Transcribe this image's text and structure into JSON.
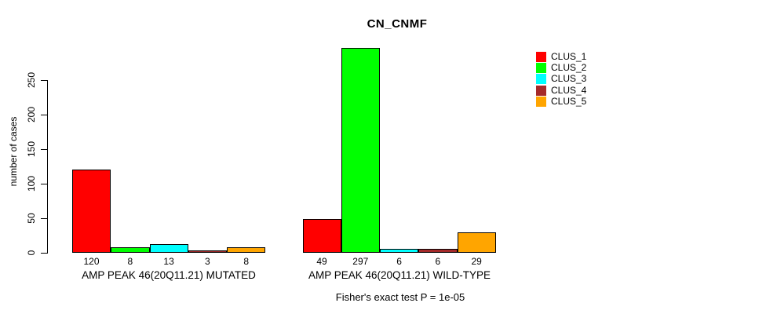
{
  "title": "CN_CNMF",
  "chart_data": {
    "type": "bar",
    "title": "CN_CNMF",
    "xlabel": "",
    "ylabel": "number of cases",
    "ylim": [
      0,
      250
    ],
    "yticks": [
      0,
      50,
      100,
      150,
      200,
      250
    ],
    "grid": false,
    "background_color": "#FFFFFF",
    "categories": [
      "AMP PEAK 46(20Q11.21) MUTATED",
      "AMP PEAK 46(20Q11.21) WILD-TYPE"
    ],
    "series": [
      {
        "name": "CLUS_1",
        "color": "#FF0000",
        "values": [
          120,
          49
        ]
      },
      {
        "name": "CLUS_2",
        "color": "#00FF00",
        "values": [
          8,
          297
        ]
      },
      {
        "name": "CLUS_3",
        "color": "#00FFFF",
        "values": [
          13,
          6
        ]
      },
      {
        "name": "CLUS_4",
        "color": "#A52A2A",
        "values": [
          3,
          6
        ]
      },
      {
        "name": "CLUS_5",
        "color": "#FFA500",
        "values": [
          8,
          29
        ]
      }
    ],
    "bar_value_labels": {
      "AMP PEAK 46(20Q11.21) MUTATED": [
        120,
        8,
        13,
        3,
        8
      ],
      "AMP PEAK 46(20Q11.21) WILD-TYPE": [
        49,
        297,
        6,
        6,
        29
      ]
    },
    "annotation": "Fisher's exact test P = 1e-05",
    "legend": {
      "position": "right",
      "entries": [
        "CLUS_1",
        "CLUS_2",
        "CLUS_3",
        "CLUS_4",
        "CLUS_5"
      ]
    }
  }
}
